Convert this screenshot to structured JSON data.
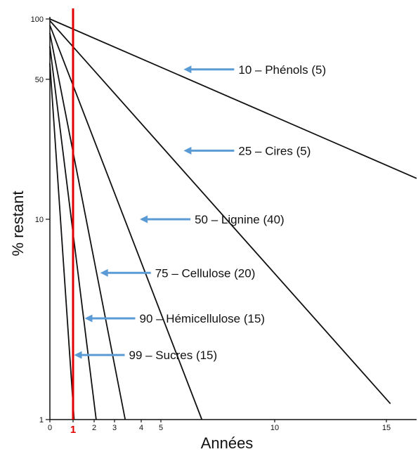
{
  "chart_data": {
    "type": "line",
    "title": "",
    "xlabel": "Années",
    "ylabel": "% restant",
    "yscale": "log",
    "xscale": "compressed-linear",
    "xlim": [
      0,
      16.5
    ],
    "ylim": [
      1,
      100
    ],
    "grid": false,
    "legend": "none",
    "x_ticks": [
      "0",
      "1",
      "2",
      "3",
      "4",
      "5",
      "10",
      "15"
    ],
    "y_ticks": [
      "100",
      "50",
      "10",
      "1"
    ],
    "marker_line": {
      "x": 1,
      "label": "1",
      "color": "#e00000"
    },
    "series": [
      {
        "name": "10 – Phénols (5)",
        "points": [
          [
            0,
            100
          ],
          [
            16.5,
            16
          ]
        ],
        "annotation_at": [
          6,
          56
        ]
      },
      {
        "name": "25 – Cires (5)",
        "points": [
          [
            0,
            98
          ],
          [
            15.2,
            1.2
          ]
        ],
        "annotation_at": [
          6,
          22
        ]
      },
      {
        "name": "50 – Lignine (40)",
        "points": [
          [
            0,
            93
          ],
          [
            6.8,
            1
          ]
        ],
        "annotation_at": [
          3.95,
          10
        ]
      },
      {
        "name": "75 – Cellulose (20)",
        "points": [
          [
            0,
            85
          ],
          [
            3.4,
            1
          ]
        ],
        "annotation_at": [
          2.3,
          5.4
        ]
      },
      {
        "name": "90 – Hémicellulose (15)",
        "points": [
          [
            0,
            73
          ],
          [
            2.1,
            1
          ]
        ],
        "annotation_at": [
          1.55,
          3.2
        ]
      },
      {
        "name": "99 – Sucres (15)",
        "points": [
          [
            0,
            60
          ],
          [
            1.05,
            1
          ]
        ],
        "annotation_at": [
          1.05,
          2.1
        ]
      }
    ],
    "colors": {
      "lines": "#111111",
      "marker": "#e00000",
      "arrows": "#5b9bd5"
    }
  }
}
